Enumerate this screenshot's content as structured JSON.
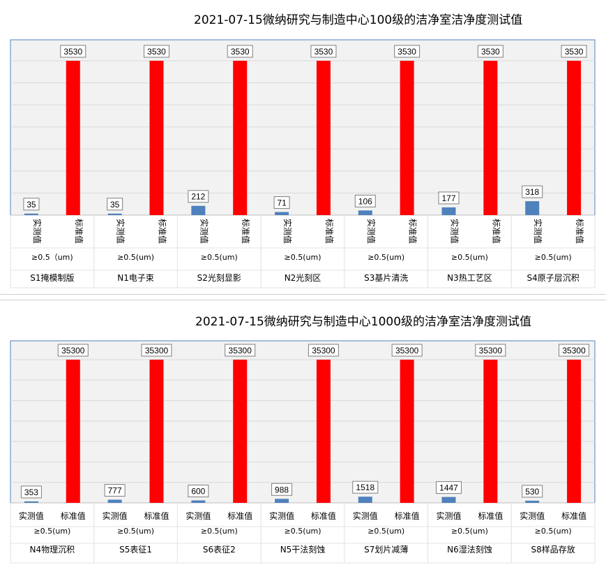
{
  "chart_data": [
    {
      "type": "bar",
      "title": "2021-07-15微纳研究与制造中心100级的洁净室洁净度测试值",
      "series_names": [
        "实测值",
        "标准值"
      ],
      "particle_label": [
        "≥0.5（um)",
        "≥0.5(um)",
        "≥0.5(um)",
        "≥0.5(um)",
        "≥0.5(um)",
        "≥0.5(um)",
        "≥0.5(um)"
      ],
      "categories": [
        "S1掩模制版",
        "N1电子束",
        "S2光刻显影",
        "N2光刻区",
        "S3基片清洗",
        "N3热工艺区",
        "S4原子层沉积"
      ],
      "series": [
        {
          "name": "实测值",
          "values": [
            35,
            35,
            212,
            71,
            106,
            177,
            318
          ],
          "color": "#4f81bd"
        },
        {
          "name": "标准值",
          "values": [
            3530,
            3530,
            3530,
            3530,
            3530,
            3530,
            3530
          ],
          "color": "#ff0000"
        }
      ],
      "ylim": [
        0,
        3530
      ],
      "grid": true,
      "vertical_series_labels": true
    },
    {
      "type": "bar",
      "title": "2021-07-15微纳研究与制造中心1000级的洁净室洁净度测试值",
      "series_names": [
        "实测值",
        "标准值"
      ],
      "particle_label": [
        "≥0.5(um)",
        "≥0.5(um)",
        "≥0.5(um)",
        "≥0.5(um)",
        "≥0.5(um)",
        "≥0.5(um)",
        "≥0.5(um)"
      ],
      "categories": [
        "N4物理沉积",
        "S5表征1",
        "S6表征2",
        "N5干法刻蚀",
        "S7划片减薄",
        "N6湿法刻蚀",
        "S8样品存放"
      ],
      "series": [
        {
          "name": "实测值",
          "values": [
            353,
            777,
            600,
            988,
            1518,
            1447,
            530
          ],
          "color": "#4f81bd"
        },
        {
          "name": "标准值",
          "values": [
            35300,
            35300,
            35300,
            35300,
            35300,
            35300,
            35300
          ],
          "color": "#ff0000"
        }
      ],
      "ylim": [
        0,
        35300
      ],
      "grid": true,
      "vertical_series_labels": false
    }
  ]
}
